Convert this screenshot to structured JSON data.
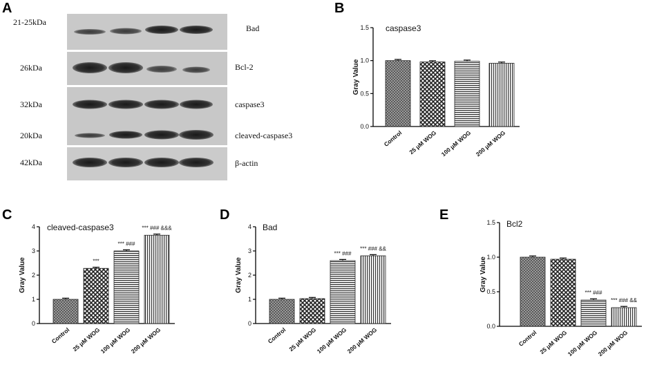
{
  "panel_labels": [
    "A",
    "B",
    "C",
    "D",
    "E"
  ],
  "blot": {
    "left_labels": [
      "21-25kDa",
      "26kDa",
      "32kDa",
      "20kDa",
      "42kDa"
    ],
    "right_labels": [
      "Bad",
      "Bcl-2",
      "caspase3",
      "cleaved-caspase3",
      "β-actin"
    ]
  },
  "chart_data": [
    {
      "id": "B",
      "type": "bar",
      "title": "caspase3",
      "ylabel": "Gray Value",
      "categories": [
        "Control",
        "25 μM WOG",
        "100 μM WOG",
        "200 μM WOG"
      ],
      "values": [
        1.0,
        0.98,
        0.99,
        0.96
      ],
      "ylim": [
        0,
        1.5
      ],
      "yticks": [
        "0.0",
        "0.5",
        "1.0",
        "1.5"
      ],
      "annotations": [
        "",
        "",
        "",
        ""
      ]
    },
    {
      "id": "C",
      "type": "bar",
      "title": "cleaved-caspase3",
      "ylabel": "Gray Value",
      "categories": [
        "Control",
        "25 μM WOG",
        "100 μM WOG",
        "200 μM WOG"
      ],
      "values": [
        1.0,
        2.28,
        3.0,
        3.65
      ],
      "ylim": [
        0,
        4
      ],
      "yticks": [
        "0",
        "1",
        "2",
        "3",
        "4"
      ],
      "annotations": [
        "",
        "***",
        "*** ###",
        "*** ### &&&"
      ]
    },
    {
      "id": "D",
      "type": "bar",
      "title": "Bad",
      "ylabel": "Gray Value",
      "categories": [
        "Control",
        "25 μM WOG",
        "100 μM WOG",
        "200 μM WOG"
      ],
      "values": [
        1.0,
        1.03,
        2.6,
        2.8
      ],
      "ylim": [
        0,
        4
      ],
      "yticks": [
        "0",
        "1",
        "2",
        "3",
        "4"
      ],
      "annotations": [
        "",
        "",
        "*** ###",
        "*** ### &&"
      ]
    },
    {
      "id": "E",
      "type": "bar",
      "title": "Bcl2",
      "ylabel": "Gray Value",
      "categories": [
        "Control",
        "25 μM WOG",
        "100 μM WOG",
        "200 μM WOG"
      ],
      "values": [
        1.0,
        0.97,
        0.38,
        0.27
      ],
      "ylim": [
        0,
        1.5
      ],
      "yticks": [
        "0.0",
        "0.5",
        "1.0",
        "1.5"
      ],
      "annotations": [
        "",
        "",
        "*** ###",
        "*** ### &&"
      ]
    }
  ]
}
